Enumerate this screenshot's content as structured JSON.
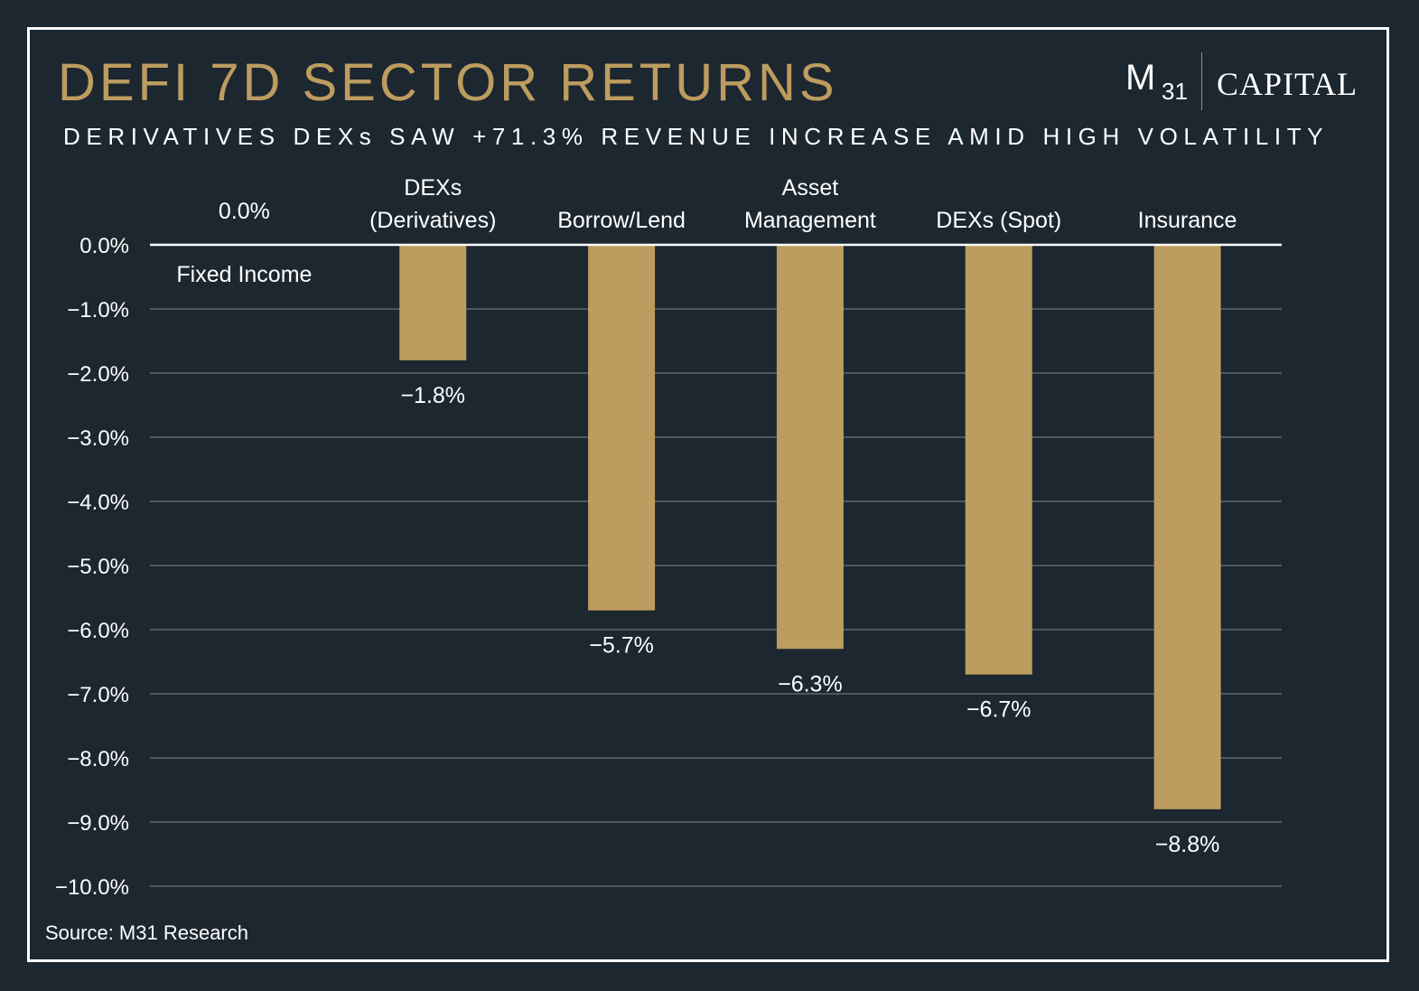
{
  "header": {
    "title": "DEFI 7D SECTOR RETURNS",
    "subtitle": "DERIVATIVES DEXs SAW +71.3% REVENUE INCREASE AMID HIGH VOLATILITY"
  },
  "logo": {
    "m": "M",
    "number": "31",
    "word": "CAPITAL"
  },
  "footer": {
    "source": "Source: M31 Research"
  },
  "colors": {
    "background": "#1c2730",
    "bar": "#bd9c5f",
    "grid": "#6b7479",
    "zero_line": "#ffffff",
    "text": "#ffffff",
    "title": "#bd9c5f"
  },
  "chart_data": {
    "type": "bar",
    "categories": [
      [
        "Fixed Income"
      ],
      [
        "DEXs",
        "(Derivatives)"
      ],
      [
        "Borrow/Lend"
      ],
      [
        "Asset",
        "Management"
      ],
      [
        "DEXs (Spot)"
      ],
      [
        "Insurance"
      ]
    ],
    "values": [
      0.0,
      -1.8,
      -5.7,
      -6.3,
      -6.7,
      -8.8
    ],
    "data_labels": [
      "0.0%",
      "−1.8%",
      "−5.7%",
      "−6.3%",
      "−6.7%",
      "−8.8%"
    ],
    "yticks": [
      "0.0%",
      "−1.0%",
      "−2.0%",
      "−3.0%",
      "−4.0%",
      "−5.0%",
      "−6.0%",
      "−7.0%",
      "−8.0%",
      "−9.0%",
      "−10.0%"
    ],
    "ylim": [
      -10,
      0
    ],
    "grid": true,
    "title": "DEFI 7D SECTOR RETURNS",
    "xlabel": "",
    "ylabel": ""
  }
}
